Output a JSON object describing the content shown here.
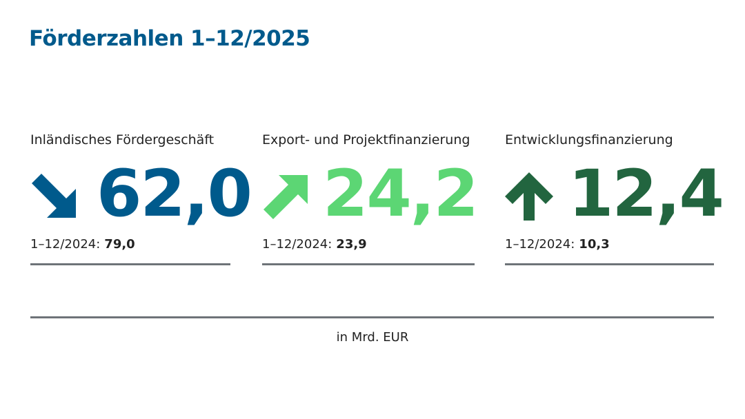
{
  "header": {
    "title": "Förderzahlen 1–12/2025"
  },
  "kpis": [
    {
      "label": "Inländisches Fördergeschäft",
      "value": "62,0",
      "trend": "down-right",
      "color": "#005a8c",
      "prior_label": "1–12/2024:",
      "prior_value": "79,0"
    },
    {
      "label": "Export- und Projektfinanzierung",
      "value": "24,2",
      "trend": "up-right",
      "color": "#5cd674",
      "prior_label": "1–12/2024:",
      "prior_value": "23,9"
    },
    {
      "label": "Entwicklungsfinanzierung",
      "value": "12,4",
      "trend": "up",
      "color": "#22653f",
      "prior_label": "1–12/2024:",
      "prior_value": "10,3"
    }
  ],
  "footer": {
    "unit": "in Mrd. EUR"
  }
}
